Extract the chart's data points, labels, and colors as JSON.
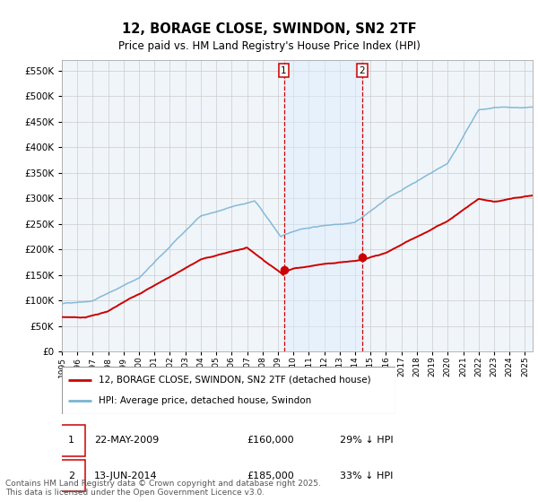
{
  "title": "12, BORAGE CLOSE, SWINDON, SN2 2TF",
  "subtitle": "Price paid vs. HM Land Registry's House Price Index (HPI)",
  "legend_property": "12, BORAGE CLOSE, SWINDON, SN2 2TF (detached house)",
  "legend_hpi": "HPI: Average price, detached house, Swindon",
  "transaction1_date": "22-MAY-2009",
  "transaction1_price": "£160,000",
  "transaction1_hpi": "29% ↓ HPI",
  "transaction1_year": 2009.38,
  "transaction1_value": 160000,
  "transaction2_date": "13-JUN-2014",
  "transaction2_price": "£185,000",
  "transaction2_hpi": "33% ↓ HPI",
  "transaction2_year": 2014.44,
  "transaction2_value": 185000,
  "hpi_color": "#7ab3d4",
  "price_color": "#cc0000",
  "vline_color": "#cc0000",
  "shade_color": "#ddeeff",
  "background_color": "#ffffff",
  "grid_color": "#cccccc",
  "ylim": [
    0,
    570000
  ],
  "yticks": [
    0,
    50000,
    100000,
    150000,
    200000,
    250000,
    300000,
    350000,
    400000,
    450000,
    500000,
    550000
  ],
  "footer": "Contains HM Land Registry data © Crown copyright and database right 2025.\nThis data is licensed under the Open Government Licence v3.0."
}
